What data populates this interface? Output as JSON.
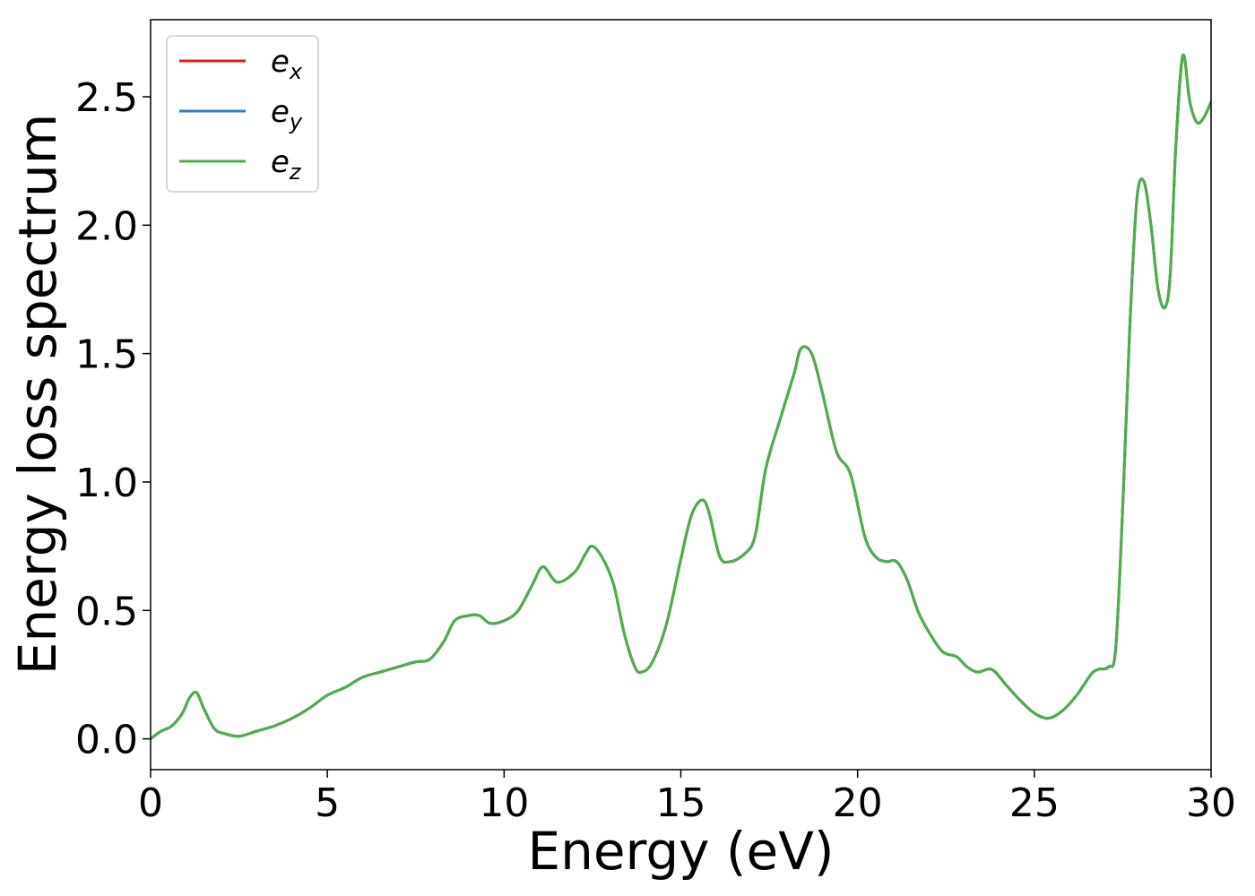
{
  "chart_data": {
    "type": "line",
    "title": "",
    "xlabel": "Energy (eV)",
    "ylabel": "Energy loss spectrum",
    "xlim": [
      0,
      30
    ],
    "ylim": [
      -0.12,
      2.8
    ],
    "x_ticks": [
      0,
      5,
      10,
      15,
      20,
      25,
      30
    ],
    "x_tick_labels": [
      "0",
      "5",
      "10",
      "15",
      "20",
      "25",
      "30"
    ],
    "y_ticks": [
      0.0,
      0.5,
      1.0,
      1.5,
      2.0,
      2.5
    ],
    "y_tick_labels": [
      "0.0",
      "0.5",
      "1.0",
      "1.5",
      "2.0",
      "2.5"
    ],
    "grid": false,
    "legend_position": "top-left",
    "series": [
      {
        "name": "e",
        "subscript": "x",
        "color": "#e41a1c"
      },
      {
        "name": "e",
        "subscript": "y",
        "color": "#377eb8"
      },
      {
        "name": "e",
        "subscript": "z",
        "color": "#4daf4a"
      }
    ],
    "x": [
      0,
      0.3,
      0.6,
      0.9,
      1.1,
      1.3,
      1.5,
      1.8,
      2.1,
      2.5,
      3.0,
      3.5,
      4.0,
      4.5,
      5.0,
      5.5,
      6.0,
      6.5,
      7.0,
      7.5,
      7.9,
      8.3,
      8.6,
      9.0,
      9.3,
      9.6,
      10.0,
      10.4,
      10.8,
      11.1,
      11.5,
      12.0,
      12.3,
      12.5,
      12.8,
      13.1,
      13.4,
      13.7,
      13.9,
      14.2,
      14.6,
      15.0,
      15.3,
      15.6,
      15.8,
      16.1,
      16.4,
      16.8,
      17.1,
      17.4,
      17.8,
      18.2,
      18.4,
      18.7,
      19.0,
      19.4,
      19.8,
      20.2,
      20.5,
      20.8,
      21.1,
      21.4,
      21.7,
      22.0,
      22.4,
      22.8,
      23.1,
      23.4,
      23.8,
      24.2,
      24.6,
      25.0,
      25.4,
      25.8,
      26.2,
      26.6,
      26.8,
      27.1,
      27.3,
      27.5,
      27.7,
      27.9,
      28.1,
      28.3,
      28.5,
      28.7,
      28.85,
      29.0,
      29.2,
      29.4,
      29.6,
      29.8,
      30.0
    ],
    "y": [
      0.0,
      0.03,
      0.05,
      0.1,
      0.16,
      0.18,
      0.12,
      0.04,
      0.02,
      0.01,
      0.03,
      0.05,
      0.08,
      0.12,
      0.17,
      0.2,
      0.24,
      0.26,
      0.28,
      0.3,
      0.31,
      0.38,
      0.46,
      0.48,
      0.48,
      0.45,
      0.46,
      0.5,
      0.6,
      0.67,
      0.61,
      0.65,
      0.72,
      0.75,
      0.7,
      0.6,
      0.41,
      0.28,
      0.26,
      0.3,
      0.45,
      0.7,
      0.87,
      0.93,
      0.88,
      0.71,
      0.69,
      0.72,
      0.79,
      1.05,
      1.24,
      1.42,
      1.52,
      1.5,
      1.35,
      1.12,
      1.03,
      0.79,
      0.71,
      0.69,
      0.69,
      0.62,
      0.5,
      0.42,
      0.34,
      0.32,
      0.28,
      0.26,
      0.27,
      0.21,
      0.15,
      0.1,
      0.08,
      0.11,
      0.17,
      0.25,
      0.27,
      0.28,
      0.35,
      0.9,
      1.6,
      2.1,
      2.17,
      2.0,
      1.75,
      1.68,
      1.82,
      2.3,
      2.66,
      2.48,
      2.4,
      2.42,
      2.48
    ]
  }
}
